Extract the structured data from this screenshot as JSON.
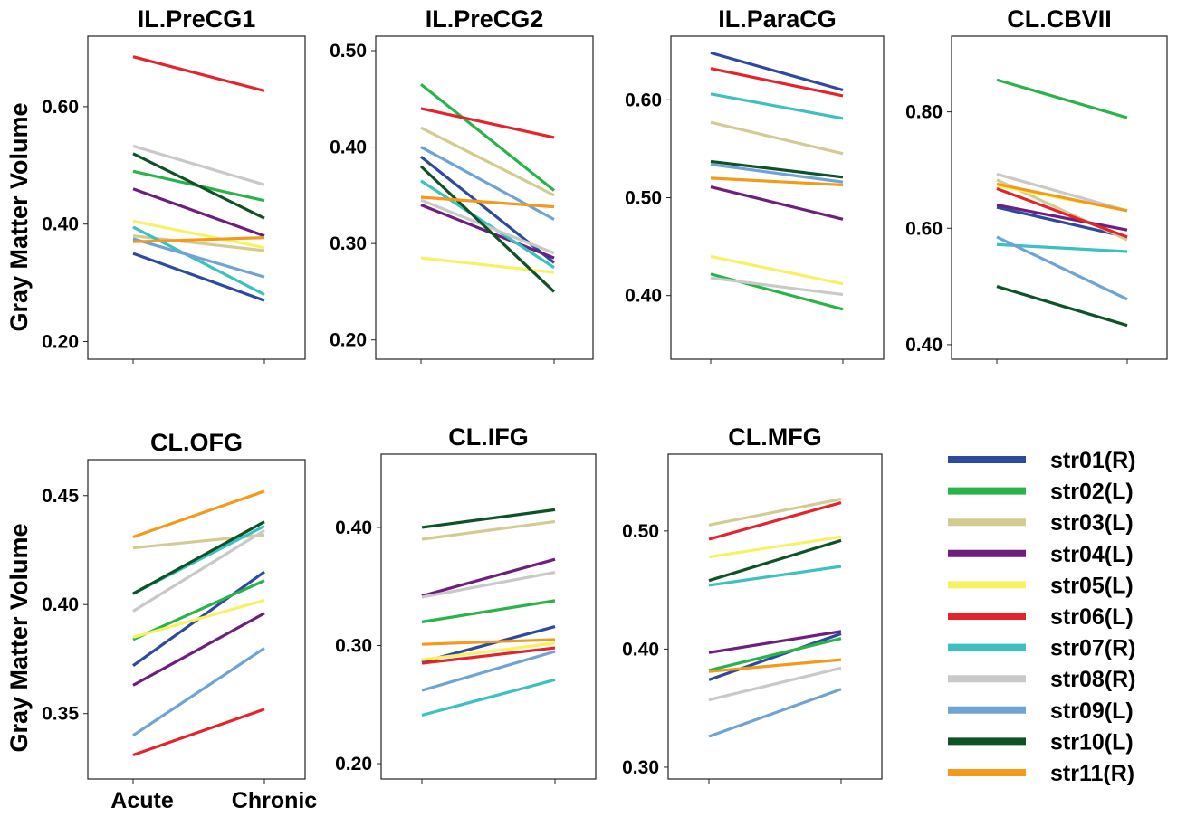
{
  "figure": {
    "ylabel": "Gray Matter Volume",
    "categories": [
      "Acute",
      "Chronic"
    ]
  },
  "legend": [
    {
      "label": "str01(R)",
      "color": "#2e4a9e"
    },
    {
      "label": "str02(L)",
      "color": "#2ab34a"
    },
    {
      "label": "str03(L)",
      "color": "#d2cc94"
    },
    {
      "label": "str04(L)",
      "color": "#6e1f7e"
    },
    {
      "label": "str05(L)",
      "color": "#f7f264"
    },
    {
      "label": "str06(L)",
      "color": "#e5232c"
    },
    {
      "label": "str07(R)",
      "color": "#3cc0c0"
    },
    {
      "label": "str08(R)",
      "color": "#c9c9c9"
    },
    {
      "label": "str09(L)",
      "color": "#6fa3d4"
    },
    {
      "label": "str10(L)",
      "color": "#0f5228"
    },
    {
      "label": "str11(R)",
      "color": "#f39a1d"
    }
  ],
  "chart_data": [
    {
      "type": "line",
      "title": "IL.PreCG1",
      "categories": [
        "Acute",
        "Chronic"
      ],
      "ylim": [
        0.17,
        0.72
      ],
      "yticks": [
        0.2,
        0.4,
        0.6
      ],
      "tick_labels": [
        "0.20",
        "0.40",
        "0.60"
      ],
      "series": [
        {
          "name": "str01(R)",
          "values": [
            0.35,
            0.27
          ]
        },
        {
          "name": "str02(L)",
          "values": [
            0.49,
            0.44
          ]
        },
        {
          "name": "str03(L)",
          "values": [
            0.38,
            0.355
          ]
        },
        {
          "name": "str04(L)",
          "values": [
            0.46,
            0.38
          ]
        },
        {
          "name": "str05(L)",
          "values": [
            0.405,
            0.36
          ]
        },
        {
          "name": "str06(L)",
          "values": [
            0.685,
            0.627
          ]
        },
        {
          "name": "str07(R)",
          "values": [
            0.395,
            0.28
          ]
        },
        {
          "name": "str08(R)",
          "values": [
            0.533,
            0.467
          ]
        },
        {
          "name": "str09(L)",
          "values": [
            0.375,
            0.31
          ]
        },
        {
          "name": "str10(L)",
          "values": [
            0.52,
            0.41
          ]
        },
        {
          "name": "str11(R)",
          "values": [
            0.37,
            0.377
          ]
        }
      ]
    },
    {
      "type": "line",
      "title": "IL.PreCG2",
      "categories": [
        "Acute",
        "Chronic"
      ],
      "ylim": [
        0.18,
        0.515
      ],
      "yticks": [
        0.2,
        0.3,
        0.4,
        0.5
      ],
      "tick_labels": [
        "0.20",
        "0.30",
        "0.40",
        "0.50"
      ],
      "series": [
        {
          "name": "str01(R)",
          "values": [
            0.39,
            0.28
          ]
        },
        {
          "name": "str02(L)",
          "values": [
            0.465,
            0.355
          ]
        },
        {
          "name": "str03(L)",
          "values": [
            0.42,
            0.35
          ]
        },
        {
          "name": "str04(L)",
          "values": [
            0.34,
            0.285
          ]
        },
        {
          "name": "str05(L)",
          "values": [
            0.285,
            0.27
          ]
        },
        {
          "name": "str06(L)",
          "values": [
            0.44,
            0.41
          ]
        },
        {
          "name": "str07(R)",
          "values": [
            0.365,
            0.275
          ]
        },
        {
          "name": "str08(R)",
          "values": [
            0.345,
            0.29
          ]
        },
        {
          "name": "str09(L)",
          "values": [
            0.4,
            0.325
          ]
        },
        {
          "name": "str10(L)",
          "values": [
            0.38,
            0.25
          ]
        },
        {
          "name": "str11(R)",
          "values": [
            0.348,
            0.338
          ]
        }
      ]
    },
    {
      "type": "line",
      "title": "IL.ParaCG",
      "categories": [
        "Acute",
        "Chronic"
      ],
      "ylim": [
        0.335,
        0.665
      ],
      "yticks": [
        0.4,
        0.5,
        0.6
      ],
      "tick_labels": [
        "0.40",
        "0.50",
        "0.60"
      ],
      "series": [
        {
          "name": "str01(R)",
          "values": [
            0.648,
            0.61
          ]
        },
        {
          "name": "str02(L)",
          "values": [
            0.422,
            0.386
          ]
        },
        {
          "name": "str03(L)",
          "values": [
            0.577,
            0.545
          ]
        },
        {
          "name": "str04(L)",
          "values": [
            0.511,
            0.478
          ]
        },
        {
          "name": "str05(L)",
          "values": [
            0.44,
            0.412
          ]
        },
        {
          "name": "str06(L)",
          "values": [
            0.632,
            0.604
          ]
        },
        {
          "name": "str07(R)",
          "values": [
            0.606,
            0.581
          ]
        },
        {
          "name": "str08(R)",
          "values": [
            0.418,
            0.401
          ]
        },
        {
          "name": "str09(L)",
          "values": [
            0.534,
            0.516
          ]
        },
        {
          "name": "str10(L)",
          "values": [
            0.537,
            0.521
          ]
        },
        {
          "name": "str11(R)",
          "values": [
            0.52,
            0.513
          ]
        }
      ]
    },
    {
      "type": "line",
      "title": "CL.CBVII",
      "categories": [
        "Acute",
        "Chronic"
      ],
      "ylim": [
        0.375,
        0.93
      ],
      "yticks": [
        0.4,
        0.6,
        0.8
      ],
      "tick_labels": [
        "0.40",
        "0.60",
        "0.80"
      ],
      "series": [
        {
          "name": "str01(R)",
          "values": [
            0.636,
            0.585
          ]
        },
        {
          "name": "str02(L)",
          "values": [
            0.855,
            0.79
          ]
        },
        {
          "name": "str03(L)",
          "values": [
            0.683,
            0.58
          ]
        },
        {
          "name": "str04(L)",
          "values": [
            0.64,
            0.597
          ]
        },
        {
          "name": "str05(L)",
          "values": [
            0.673,
            0.63
          ]
        },
        {
          "name": "str06(L)",
          "values": [
            0.668,
            0.585
          ]
        },
        {
          "name": "str07(R)",
          "values": [
            0.572,
            0.56
          ]
        },
        {
          "name": "str08(R)",
          "values": [
            0.693,
            0.63
          ]
        },
        {
          "name": "str09(L)",
          "values": [
            0.585,
            0.478
          ]
        },
        {
          "name": "str10(L)",
          "values": [
            0.5,
            0.433
          ]
        },
        {
          "name": "str11(R)",
          "values": [
            0.676,
            0.63
          ]
        }
      ]
    },
    {
      "type": "line",
      "title": "CL.OFG",
      "categories": [
        "Acute",
        "Chronic"
      ],
      "ylim": [
        0.32,
        0.4665
      ],
      "yticks": [
        0.35,
        0.4,
        0.45
      ],
      "tick_labels": [
        "0.35",
        "0.40",
        "0.45"
      ],
      "series": [
        {
          "name": "str01(R)",
          "values": [
            0.372,
            0.415
          ]
        },
        {
          "name": "str02(L)",
          "values": [
            0.384,
            0.411
          ]
        },
        {
          "name": "str03(L)",
          "values": [
            0.426,
            0.432
          ]
        },
        {
          "name": "str04(L)",
          "values": [
            0.363,
            0.396
          ]
        },
        {
          "name": "str05(L)",
          "values": [
            0.385,
            0.402
          ]
        },
        {
          "name": "str06(L)",
          "values": [
            0.331,
            0.352
          ]
        },
        {
          "name": "str07(R)",
          "values": [
            0.405,
            0.436
          ]
        },
        {
          "name": "str08(R)",
          "values": [
            0.397,
            0.434
          ]
        },
        {
          "name": "str09(L)",
          "values": [
            0.34,
            0.38
          ]
        },
        {
          "name": "str10(L)",
          "values": [
            0.405,
            0.438
          ]
        },
        {
          "name": "str11(R)",
          "values": [
            0.431,
            0.452
          ]
        }
      ]
    },
    {
      "type": "line",
      "title": "CL.IFG",
      "categories": [
        "Acute",
        "Chronic"
      ],
      "ylim": [
        0.187,
        0.462
      ],
      "yticks": [
        0.2,
        0.3,
        0.4
      ],
      "tick_labels": [
        "0.20",
        "0.30",
        "0.40"
      ],
      "series": [
        {
          "name": "str01(R)",
          "values": [
            0.286,
            0.316
          ]
        },
        {
          "name": "str02(L)",
          "values": [
            0.32,
            0.338
          ]
        },
        {
          "name": "str03(L)",
          "values": [
            0.39,
            0.405
          ]
        },
        {
          "name": "str04(L)",
          "values": [
            0.342,
            0.373
          ]
        },
        {
          "name": "str05(L)",
          "values": [
            0.288,
            0.302
          ]
        },
        {
          "name": "str06(L)",
          "values": [
            0.285,
            0.298
          ]
        },
        {
          "name": "str07(R)",
          "values": [
            0.241,
            0.271
          ]
        },
        {
          "name": "str08(R)",
          "values": [
            0.341,
            0.362
          ]
        },
        {
          "name": "str09(L)",
          "values": [
            0.262,
            0.295
          ]
        },
        {
          "name": "str10(L)",
          "values": [
            0.4,
            0.415
          ]
        },
        {
          "name": "str11(R)",
          "values": [
            0.301,
            0.305
          ]
        }
      ]
    },
    {
      "type": "line",
      "title": "CL.MFG",
      "categories": [
        "Acute",
        "Chronic"
      ],
      "ylim": [
        0.29,
        0.565
      ],
      "yticks": [
        0.3,
        0.4,
        0.5
      ],
      "tick_labels": [
        "0.30",
        "0.40",
        "0.50"
      ],
      "series": [
        {
          "name": "str01(R)",
          "values": [
            0.374,
            0.413
          ]
        },
        {
          "name": "str02(L)",
          "values": [
            0.382,
            0.409
          ]
        },
        {
          "name": "str03(L)",
          "values": [
            0.505,
            0.527
          ]
        },
        {
          "name": "str04(L)",
          "values": [
            0.397,
            0.415
          ]
        },
        {
          "name": "str05(L)",
          "values": [
            0.478,
            0.495
          ]
        },
        {
          "name": "str06(L)",
          "values": [
            0.493,
            0.524
          ]
        },
        {
          "name": "str07(R)",
          "values": [
            0.454,
            0.47
          ]
        },
        {
          "name": "str08(R)",
          "values": [
            0.357,
            0.384
          ]
        },
        {
          "name": "str09(L)",
          "values": [
            0.326,
            0.366
          ]
        },
        {
          "name": "str10(L)",
          "values": [
            0.458,
            0.492
          ]
        },
        {
          "name": "str11(R)",
          "values": [
            0.381,
            0.391
          ]
        }
      ]
    }
  ]
}
